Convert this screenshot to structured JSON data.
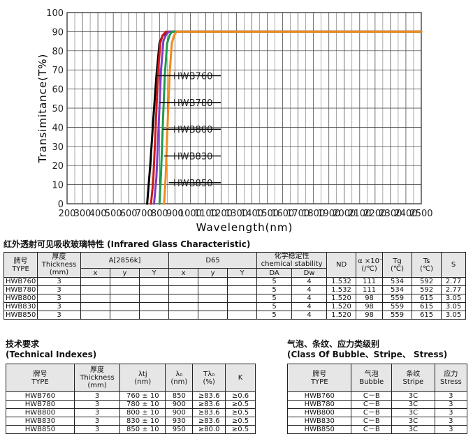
{
  "chart_data": {
    "type": "line",
    "xlabel": "Wavelength(nm)",
    "ylabel": "Transimitance(T%)",
    "x_ticks": [
      "200",
      "300",
      "400",
      "500",
      "600",
      "700",
      "800",
      "900",
      "1000",
      "1100",
      "1200",
      "1300",
      "1400",
      "1500",
      "1600",
      "1700",
      "1800",
      "1900",
      "2000",
      "2100",
      "2200",
      "2300",
      "2400",
      "2500"
    ],
    "y_ticks": [
      "0",
      "10",
      "20",
      "30",
      "40",
      "50",
      "60",
      "70",
      "80",
      "90",
      "100"
    ],
    "xlim": [
      200,
      2500
    ],
    "ylim": [
      0,
      100
    ],
    "grid": true,
    "series": [
      {
        "name": "HWB760",
        "color": "#000000",
        "x": [
          720,
          740,
          760,
          780,
          800,
          820,
          840,
          860,
          880,
          900,
          2500
        ],
        "y": [
          0,
          20,
          44,
          67,
          84,
          88,
          89,
          90,
          90,
          90,
          90
        ]
      },
      {
        "name": "HWB780",
        "color": "#d01818",
        "x": [
          745,
          760,
          775,
          790,
          805,
          820,
          840,
          860,
          880,
          2500
        ],
        "y": [
          0,
          12,
          40,
          68,
          84,
          88,
          90,
          90,
          90,
          90
        ]
      },
      {
        "name": "HWB800",
        "color": "#7d3cc8",
        "x": [
          765,
          780,
          795,
          810,
          825,
          840,
          860,
          880,
          2500
        ],
        "y": [
          0,
          14,
          42,
          70,
          85,
          88,
          90,
          90,
          90
        ]
      },
      {
        "name": "HWB830",
        "color": "#1f9a4a",
        "x": [
          800,
          810,
          822,
          835,
          850,
          865,
          880,
          900,
          2500
        ],
        "y": [
          0,
          16,
          42,
          68,
          84,
          88,
          90,
          90,
          90
        ]
      },
      {
        "name": "HWB850",
        "color": "#f08a1c",
        "x": [
          830,
          840,
          852,
          866,
          880,
          895,
          910,
          930,
          2500
        ],
        "y": [
          0,
          14,
          40,
          68,
          84,
          88,
          90,
          90,
          90
        ]
      }
    ],
    "annotations": [
      {
        "label": "HWB760",
        "y": 67,
        "x_end": 780
      },
      {
        "label": "HWB780",
        "y": 53,
        "x_end": 800
      },
      {
        "label": "HWB800",
        "y": 39,
        "x_end": 820
      },
      {
        "label": "HWB830",
        "y": 25,
        "x_end": 830
      },
      {
        "label": "HWB850",
        "y": 11,
        "x_end": 860
      }
    ]
  },
  "section1": {
    "title": "红外透射可见吸收玻璃特性 (Infrared Glass Characteristic)",
    "h": {
      "type_cn": "牌号",
      "type_en": "TYPE",
      "thick_en": "厚度",
      "thick_en2": "Thickness",
      "thick_unit": "(mm)",
      "a": "A[2856k]",
      "d65": "D65",
      "chem_cn": "化学稳定性",
      "chem_en": "chemical stability",
      "nd": "ND",
      "alpha": "α ×10⁻⁷",
      "alpha_unit": "(/℃)",
      "tg": "Tg",
      "tg_unit": "(℃)",
      "ts": "Ts",
      "ts_unit": "(℃)",
      "s": "S",
      "x1": "x",
      "y1": "y",
      "Y1": "Y",
      "x2": "x",
      "y2": "y",
      "Y2": "Y",
      "da": "DA",
      "dw": "Dw"
    },
    "rows": [
      {
        "type": "HWB760",
        "thick": "3",
        "da": "5",
        "dw": "4",
        "nd": "1.532",
        "alpha": "111",
        "tg": "534",
        "ts": "592",
        "s": "2.77"
      },
      {
        "type": "HWB780",
        "thick": "3",
        "da": "5",
        "dw": "4",
        "nd": "1.532",
        "alpha": "111",
        "tg": "534",
        "ts": "592",
        "s": "2.77"
      },
      {
        "type": "HWB800",
        "thick": "3",
        "da": "5",
        "dw": "4",
        "nd": "1.520",
        "alpha": "98",
        "tg": "559",
        "ts": "615",
        "s": "3.05"
      },
      {
        "type": "HWB830",
        "thick": "3",
        "da": "5",
        "dw": "4",
        "nd": "1.520",
        "alpha": "98",
        "tg": "559",
        "ts": "615",
        "s": "3.05"
      },
      {
        "type": "HWB850",
        "thick": "3",
        "da": "5",
        "dw": "4",
        "nd": "1.520",
        "alpha": "98",
        "tg": "559",
        "ts": "615",
        "s": "3.05"
      }
    ]
  },
  "section2": {
    "title_cn": "技术要求",
    "title_en": "(Technical Indexes)",
    "h": {
      "type_cn": "牌号",
      "type_en": "TYPE",
      "thick_cn": "厚度",
      "thick_en": "Thickness",
      "thick_unit": "(mm)",
      "ltj": "λtj",
      "ltj_unit": "(nm)",
      "l0": "λ₀",
      "l0_unit": "(nm)",
      "tl0": "Tλ₀",
      "tl0_unit": "(%)",
      "k": "K"
    },
    "rows": [
      {
        "type": "HWB760",
        "thick": "3",
        "ltj": "760 ± 10",
        "l0": "850",
        "tl0": "≥83.6",
        "k": "≥0.6"
      },
      {
        "type": "HWB780",
        "thick": "3",
        "ltj": "780 ± 10",
        "l0": "900",
        "tl0": "≥83.6",
        "k": "≥0.5"
      },
      {
        "type": "HWB800",
        "thick": "3",
        "ltj": "800 ± 10",
        "l0": "900",
        "tl0": "≥83.6",
        "k": "≥0.5"
      },
      {
        "type": "HWB830",
        "thick": "3",
        "ltj": "830 ± 10",
        "l0": "930",
        "tl0": "≥83.6",
        "k": "≥0.5"
      },
      {
        "type": "HWB850",
        "thick": "3",
        "ltj": "850 ± 10",
        "l0": "950",
        "tl0": "≥80.0",
        "k": "≥0.5"
      }
    ]
  },
  "section3": {
    "title_cn": "气泡、条纹、应力类级别",
    "title_en": "(Class Of Bubble、Stripe、 Stress)",
    "h": {
      "type_cn": "牌号",
      "type_en": "TYPE",
      "bub_cn": "气泡",
      "bub_en": "Bubble",
      "str_cn": "条纹",
      "str_en": "Stripe",
      "stress_cn": "应力",
      "stress_en": "Stress"
    },
    "rows": [
      {
        "type": "HWB760",
        "bubble": "C－B",
        "stripe": "3C",
        "stress": "3"
      },
      {
        "type": "HWB780",
        "bubble": "C－B",
        "stripe": "3C",
        "stress": "3"
      },
      {
        "type": "HWB800",
        "bubble": "C－B",
        "stripe": "3C",
        "stress": "3"
      },
      {
        "type": "HWB830",
        "bubble": "C－B",
        "stripe": "3C",
        "stress": "3"
      },
      {
        "type": "HWB850",
        "bubble": "C－B",
        "stripe": "3C",
        "stress": "3"
      }
    ]
  }
}
